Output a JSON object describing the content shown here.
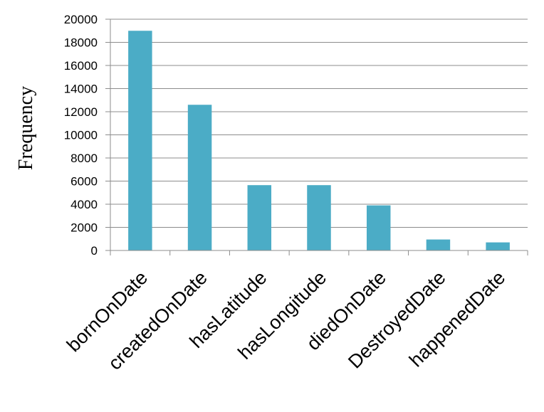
{
  "chart_data": {
    "type": "bar",
    "ylabel": "Frequency",
    "xlabel": "",
    "categories": [
      "bornOnDate",
      "createdOnDate",
      "hasLatitude",
      "hasLongitude",
      "diedOnDate",
      "DestroyedDate",
      "happenedDate"
    ],
    "values": [
      19000,
      12600,
      5650,
      5650,
      3900,
      950,
      700
    ],
    "ylim": [
      0,
      20000
    ],
    "yticks": [
      0,
      2000,
      4000,
      6000,
      8000,
      10000,
      12000,
      14000,
      16000,
      18000,
      20000
    ],
    "grid": "horizontal",
    "legend": "none",
    "bar_color": "#4bacc6"
  }
}
